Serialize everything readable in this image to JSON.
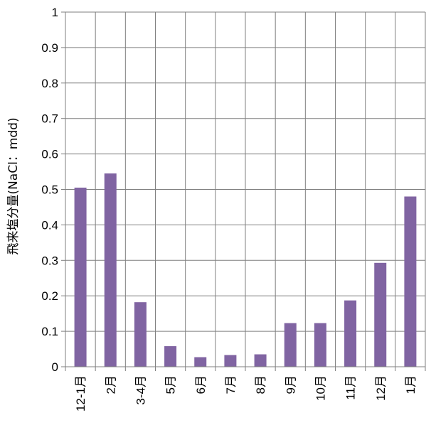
{
  "chart_data": {
    "type": "bar",
    "title": "",
    "xlabel": "",
    "ylabel": "飛来塩分量(NaCl：mdd)",
    "categories": [
      "12-1月",
      "2月",
      "3-4月",
      "5月",
      "6月",
      "7月",
      "8月",
      "9月",
      "10月",
      "11月",
      "12月",
      "1月"
    ],
    "values": [
      0.505,
      0.545,
      0.182,
      0.058,
      0.027,
      0.033,
      0.035,
      0.123,
      0.123,
      0.187,
      0.293,
      0.48
    ],
    "ylim": [
      0,
      1
    ],
    "yticks": [
      "0",
      "0.1",
      "0.2",
      "0.3",
      "0.4",
      "0.5",
      "0.6",
      "0.7",
      "0.8",
      "0.9",
      "1"
    ],
    "grid": true,
    "legend": "none",
    "colors": {
      "bar": "#8064a2",
      "grid": "#7f7f7f",
      "axis": "#7f7f7f"
    }
  }
}
